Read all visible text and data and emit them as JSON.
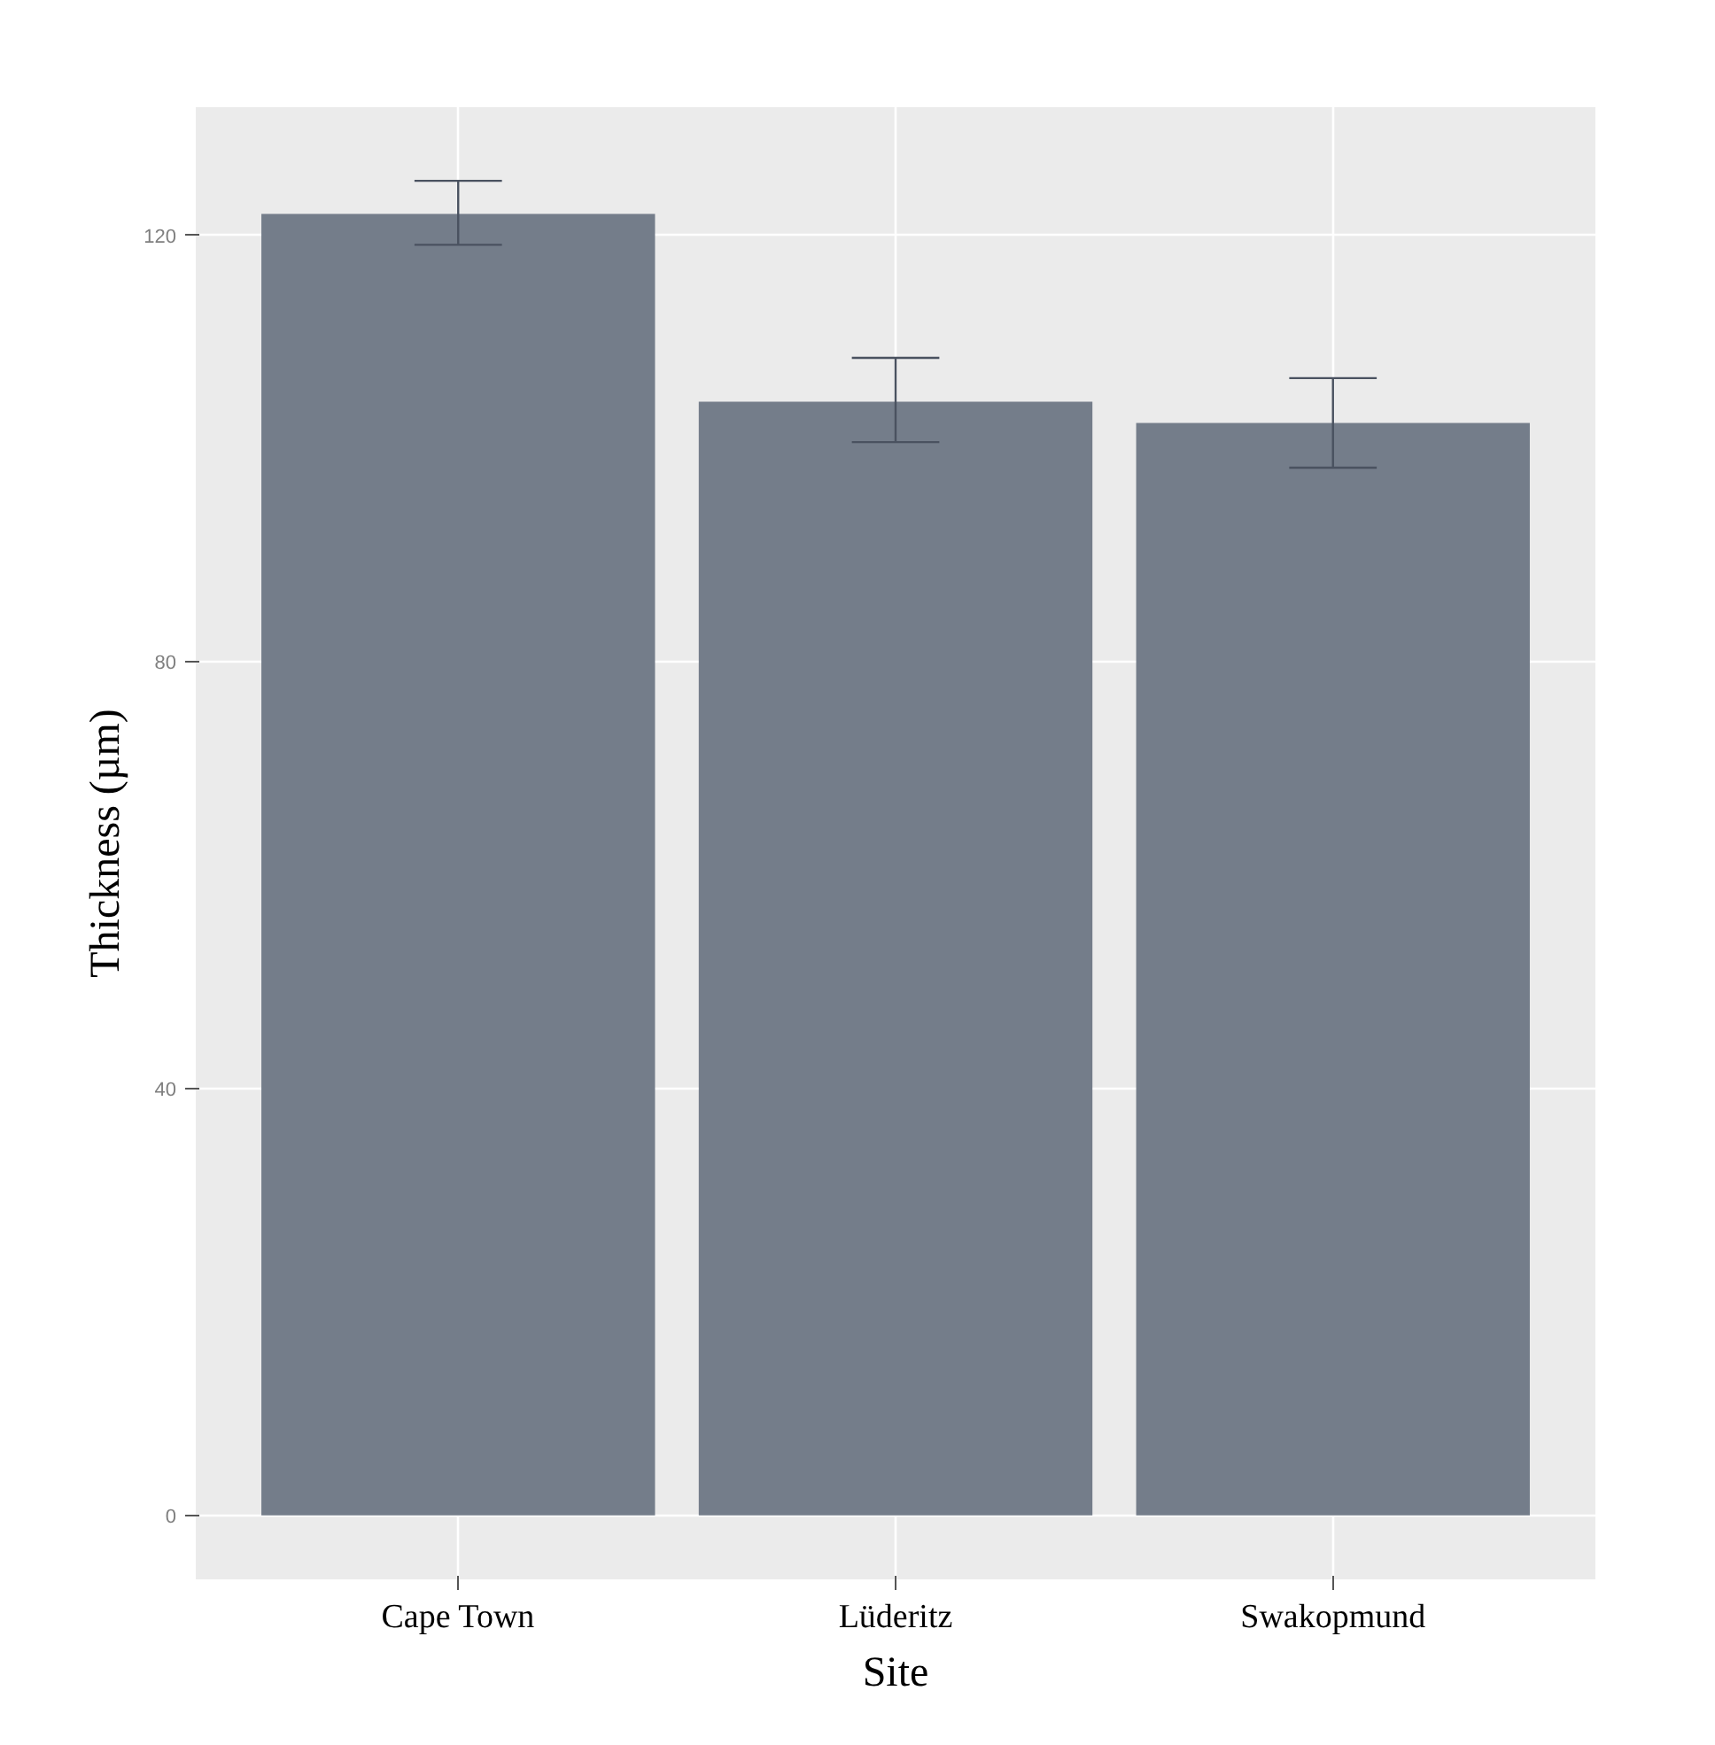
{
  "chart_data": {
    "type": "bar",
    "categories": [
      "Cape Town",
      "Lüderitz",
      "Swakopmund"
    ],
    "values": [
      122,
      104.4,
      102.4
    ],
    "errors": [
      [
        119.1,
        125.1
      ],
      [
        100.6,
        108.5
      ],
      [
        98.2,
        106.6
      ]
    ],
    "color": "#747d8a",
    "xlabel": "Site",
    "ylabel": "Thickness (µm)",
    "ylim": [
      -6,
      132
    ],
    "yticks": [
      0,
      40,
      80,
      120
    ],
    "grid": true
  }
}
